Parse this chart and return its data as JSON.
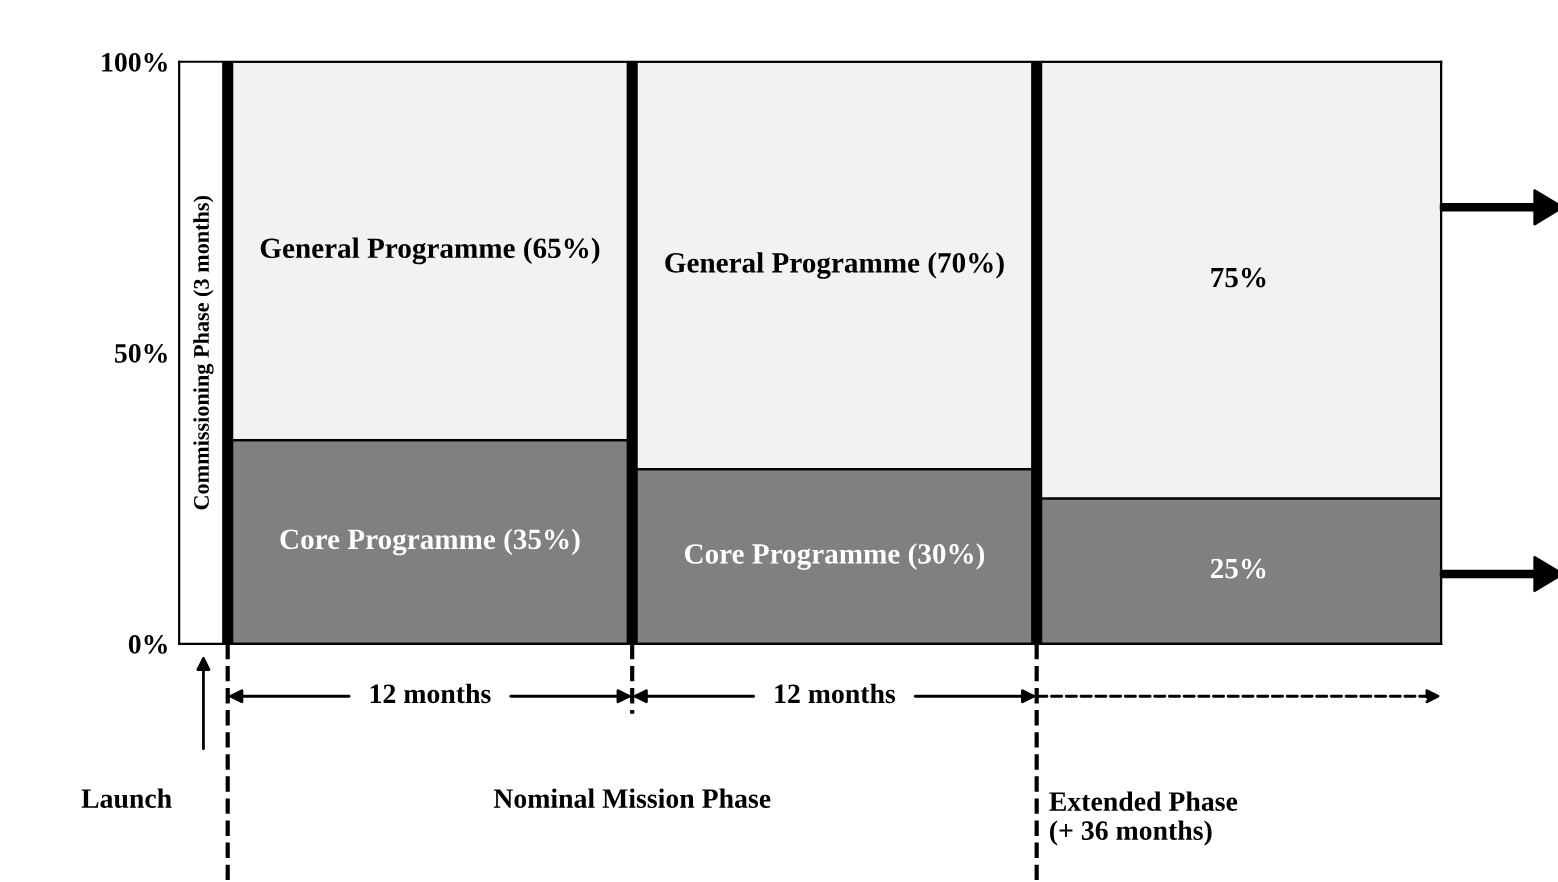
{
  "chart_data": {
    "type": "bar",
    "stacked": true,
    "categories": [
      null,
      null,
      null
    ],
    "series": [
      {
        "color": "#808080",
        "values": [
          35,
          30,
          25
        ],
        "value_labels": [
          "Core Programme (35%)",
          "Core Programme (30%)",
          "25%"
        ]
      },
      {
        "color": "#f2f2f2",
        "values": [
          65,
          70,
          75
        ],
        "value_labels": [
          "General Programme (65%)",
          "General Programme (70%)",
          "75%"
        ]
      }
    ],
    "ylim": [
      0,
      100
    ],
    "yticks": [
      {
        "value": 0,
        "label": "0%"
      },
      {
        "value": 50,
        "label": "50%"
      },
      {
        "value": 100,
        "label": "100%"
      }
    ],
    "grid": false,
    "legend": false,
    "annotations": [
      "Commissioning Phase (3 months)",
      "12 months",
      "12 months",
      "Launch",
      "Nominal Mission Phase",
      "Extended Phase\n(+ 36 months)"
    ]
  }
}
